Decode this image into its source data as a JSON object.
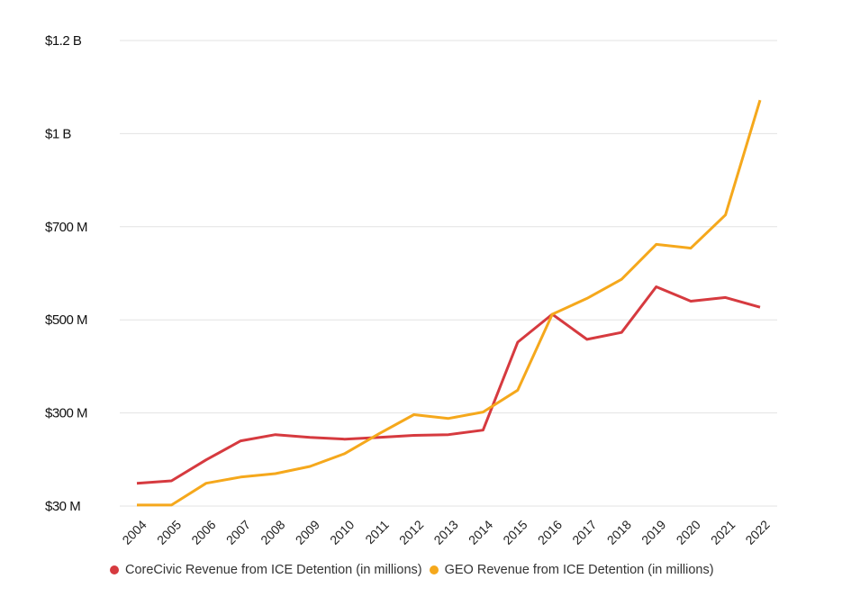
{
  "chart_data": {
    "type": "line",
    "title": "",
    "xlabel": "",
    "ylabel": "",
    "x": [
      "2004",
      "2005",
      "2006",
      "2007",
      "2008",
      "2009",
      "2010",
      "2011",
      "2012",
      "2013",
      "2014",
      "2015",
      "2016",
      "2017",
      "2018",
      "2019",
      "2020",
      "2021",
      "2022"
    ],
    "y_ticks": [
      {
        "value": 30,
        "label": "$30 M"
      },
      {
        "value": 300,
        "label": "$300 M"
      },
      {
        "value": 500,
        "label": "$500 M"
      },
      {
        "value": 700,
        "label": "$700 M"
      },
      {
        "value": 1000,
        "label": "$1 B"
      },
      {
        "value": 1200,
        "label": "$1.2 B"
      }
    ],
    "y_units": "millions USD",
    "ylim": [
      30,
      1200
    ],
    "grid": true,
    "legend_position": "bottom",
    "series": [
      {
        "name": "CoreCivic Revenue from ICE Detention (in millions)",
        "color": "#d63a3f",
        "values": [
          96,
          103,
          164,
          219,
          237,
          229,
          224,
          229,
          235,
          237,
          250,
          452,
          512,
          458,
          473,
          571,
          540,
          548,
          527
        ]
      },
      {
        "name": "GEO Revenue from ICE Detention (in millions)",
        "color": "#f5a81c",
        "values": [
          33,
          33,
          96,
          114,
          124,
          145,
          182,
          240,
          295,
          284,
          302,
          349,
          512,
          546,
          587,
          662,
          654,
          738,
          1072
        ]
      }
    ]
  }
}
